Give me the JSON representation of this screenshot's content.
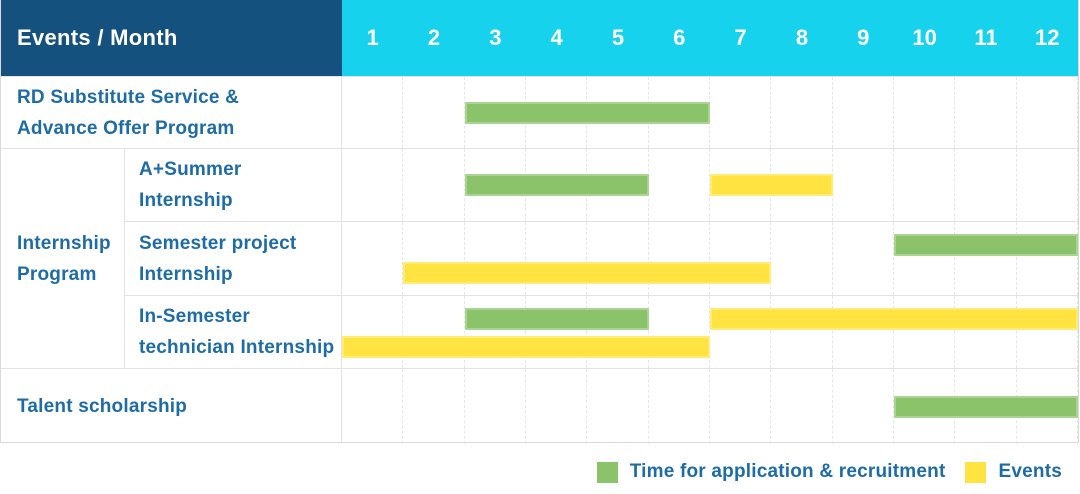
{
  "colors": {
    "header_bg": "#15517e",
    "month_header_bg": "#17d2ec",
    "label_text": "#1e6ca6",
    "green": "#8bc36a",
    "yellow": "#ffe340"
  },
  "chart_data": {
    "type": "gantt",
    "title": "Events / Month",
    "x_axis_label": "Month",
    "months": [
      "1",
      "2",
      "3",
      "4",
      "5",
      "6",
      "7",
      "8",
      "9",
      "10",
      "11",
      "12"
    ],
    "x_range": [
      1,
      12
    ],
    "grid": true,
    "legend_position": "bottom-right",
    "rows": [
      {
        "group": "",
        "label": "RD Substitute Service &\nAdvance Offer Program",
        "bars": [
          {
            "kind": "application",
            "color": "green",
            "start_month": 3,
            "end_month": 6,
            "lane": "middle"
          }
        ]
      },
      {
        "group": "Internship\nProgram",
        "label": "A+Summer\nInternship",
        "bars": [
          {
            "kind": "application",
            "color": "green",
            "start_month": 3,
            "end_month": 5,
            "lane": "middle"
          },
          {
            "kind": "event",
            "color": "yellow",
            "start_month": 7,
            "end_month": 8,
            "lane": "middle"
          }
        ]
      },
      {
        "group": "Internship\nProgram",
        "label": "Semester project\nInternship",
        "bars": [
          {
            "kind": "application",
            "color": "green",
            "start_month": 10,
            "end_month": 12,
            "lane": "top"
          },
          {
            "kind": "event",
            "color": "yellow",
            "start_month": 2,
            "end_month": 7,
            "lane": "bottom"
          }
        ]
      },
      {
        "group": "Internship\nProgram",
        "label": "In-Semester\ntechnician Internship",
        "bars": [
          {
            "kind": "application",
            "color": "green",
            "start_month": 3,
            "end_month": 5,
            "lane": "top"
          },
          {
            "kind": "event",
            "color": "yellow",
            "start_month": 7,
            "end_month": 12,
            "lane": "top"
          },
          {
            "kind": "event",
            "color": "yellow",
            "start_month": 1,
            "end_month": 6,
            "lane": "bottom"
          }
        ]
      },
      {
        "group": "",
        "label": "Talent scholarship",
        "bars": [
          {
            "kind": "application",
            "color": "green",
            "start_month": 10,
            "end_month": 12,
            "lane": "middle"
          }
        ]
      }
    ]
  },
  "legend": {
    "items": [
      {
        "label": "Time for application & recruitment",
        "color": "green"
      },
      {
        "label": "Events",
        "color": "yellow"
      }
    ]
  }
}
